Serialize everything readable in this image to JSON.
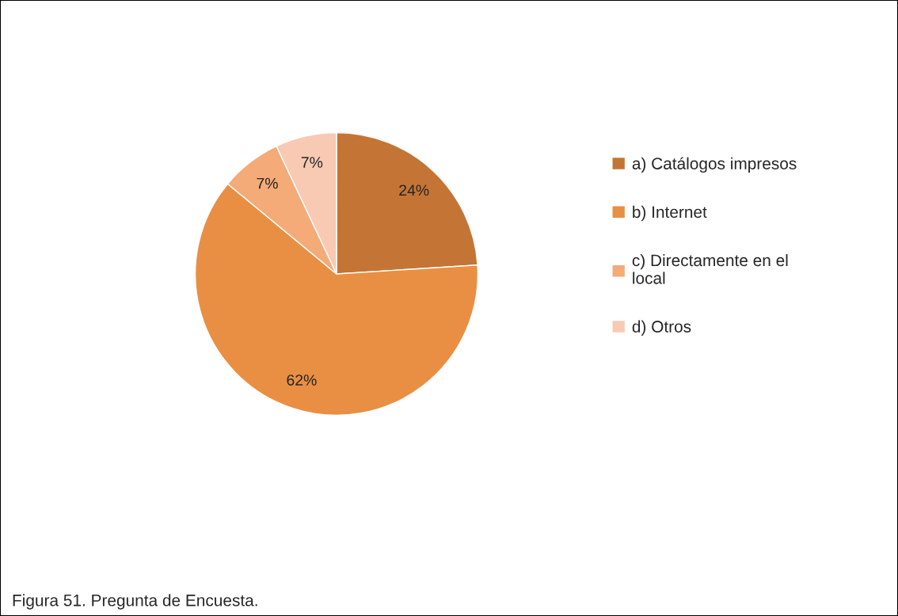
{
  "chart_data": {
    "type": "pie",
    "categories": [
      "a) Catálogos impresos",
      "b) Internet",
      "c) Directamente en el local",
      "d) Otros"
    ],
    "values": [
      24,
      62,
      7,
      7
    ],
    "colors": [
      "#c47535",
      "#e98f43",
      "#f4ab78",
      "#f8cab3"
    ],
    "value_labels": [
      "24%",
      "62%",
      "7%",
      "7%"
    ],
    "legend": "right",
    "annotations": [
      "Figura 51. Pregunta de Encuesta."
    ]
  }
}
